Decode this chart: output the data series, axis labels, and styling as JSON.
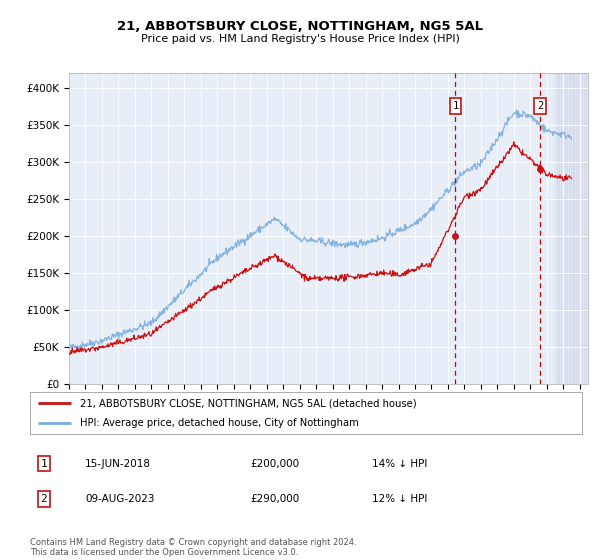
{
  "title": "21, ABBOTSBURY CLOSE, NOTTINGHAM, NG5 5AL",
  "subtitle": "Price paid vs. HM Land Registry's House Price Index (HPI)",
  "ylabel_ticks": [
    "£0",
    "£50K",
    "£100K",
    "£150K",
    "£200K",
    "£250K",
    "£300K",
    "£350K",
    "£400K"
  ],
  "ytick_values": [
    0,
    50000,
    100000,
    150000,
    200000,
    250000,
    300000,
    350000,
    400000
  ],
  "ylim": [
    0,
    420000
  ],
  "xlim_start": 1995.0,
  "xlim_end": 2026.5,
  "background_color": "#ffffff",
  "plot_bg_color": "#e8eef8",
  "hpi_color": "#7aaddd",
  "price_color": "#cc1111",
  "red_dashed_color": "#cc0000",
  "annotation_box_color": "#cc2222",
  "transaction1_x": 2018.45,
  "transaction1_y": 200000,
  "transaction1_label": "1",
  "transaction2_x": 2023.6,
  "transaction2_y": 290000,
  "transaction2_label": "2",
  "legend_line1": "21, ABBOTSBURY CLOSE, NOTTINGHAM, NG5 5AL (detached house)",
  "legend_line2": "HPI: Average price, detached house, City of Nottingham",
  "table_row1": [
    "1",
    "15-JUN-2018",
    "£200,000",
    "14% ↓ HPI"
  ],
  "table_row2": [
    "2",
    "09-AUG-2023",
    "£290,000",
    "12% ↓ HPI"
  ],
  "footer": "Contains HM Land Registry data © Crown copyright and database right 2024.\nThis data is licensed under the Open Government Licence v3.0.",
  "xtick_years": [
    1995,
    1996,
    1997,
    1998,
    1999,
    2000,
    2001,
    2002,
    2003,
    2004,
    2005,
    2006,
    2007,
    2008,
    2009,
    2010,
    2011,
    2012,
    2013,
    2014,
    2015,
    2016,
    2017,
    2018,
    2019,
    2020,
    2021,
    2022,
    2023,
    2024,
    2025,
    2026
  ]
}
